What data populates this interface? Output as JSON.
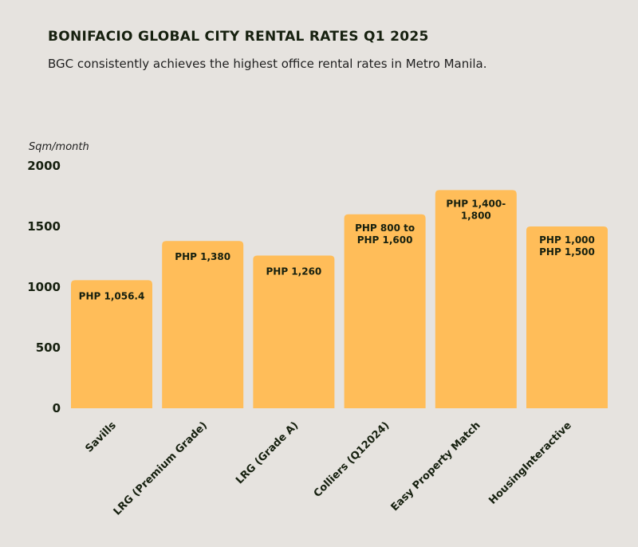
{
  "chart_data": {
    "type": "bar",
    "title": "BONIFACIO GLOBAL CITY RENTAL RATES Q1 2025",
    "subtitle": "BGC consistently achieves the highest office rental rates in Metro Manila.",
    "ylabel": "Sqm/month",
    "ylim": [
      0,
      2000
    ],
    "yticks": [
      "0",
      "500",
      "1000",
      "1500",
      "2000"
    ],
    "grid": false,
    "bar_color": "#ffbd59",
    "categories": [
      "Savills",
      "LRG (Premium Grade)",
      "LRG (Grade A)",
      "Colliers (Q12024)",
      "Easy Property Match",
      "HousingInteractive"
    ],
    "values": [
      1056.4,
      1380,
      1260,
      1600,
      1800,
      1500
    ],
    "data_labels": [
      [
        "PHP 1,056.4"
      ],
      [
        "PHP 1,380"
      ],
      [
        "PHP 1,260"
      ],
      [
        "PHP 800 to",
        "PHP 1,600"
      ],
      [
        "PHP 1,400-",
        "1,800"
      ],
      [
        "PHP 1,000",
        "PHP 1,500"
      ]
    ]
  }
}
